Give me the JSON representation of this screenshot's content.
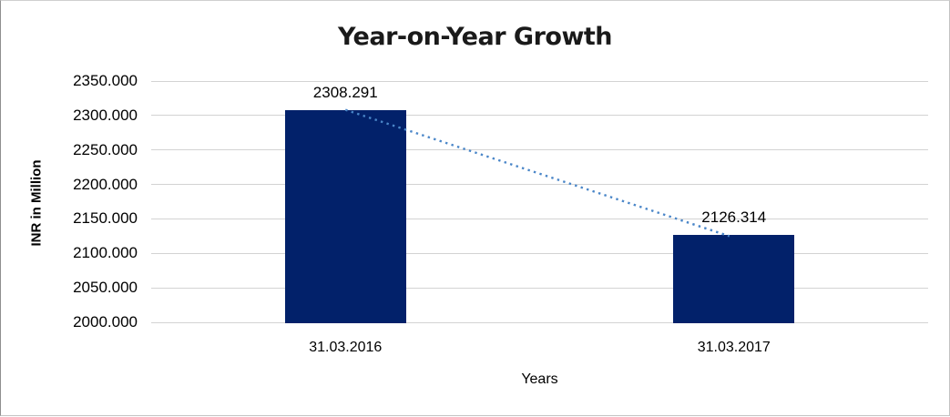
{
  "window": {
    "background": "#ffffff",
    "frame_border_color": "#c3c3c3"
  },
  "chart_data": {
    "type": "bar",
    "title": "Year-on-Year Growth",
    "categories": [
      "31.03.2016",
      "31.03.2017"
    ],
    "values": [
      2308.291,
      2126.314
    ],
    "data_labels": [
      "2308.291",
      "2126.314"
    ],
    "xlabel": "Years",
    "ylabel": "INR in Million",
    "ylim": [
      2000,
      2350
    ],
    "ytick_step": 50,
    "ytick_labels": [
      "2350.000",
      "2300.000",
      "2250.000",
      "2200.000",
      "2150.000",
      "2100.000",
      "2050.000",
      "2000.000"
    ],
    "grid": true,
    "legend": "none",
    "bar_color": "#02216A",
    "gridline_color": "#D3D3D3",
    "axis_text_color": "#000000",
    "title_text_color": "#1A1A1A",
    "trendline": {
      "type": "linear",
      "style": "dotted",
      "color": "#4A86C8",
      "from_category": "31.03.2016",
      "to_category": "31.03.2017"
    }
  }
}
